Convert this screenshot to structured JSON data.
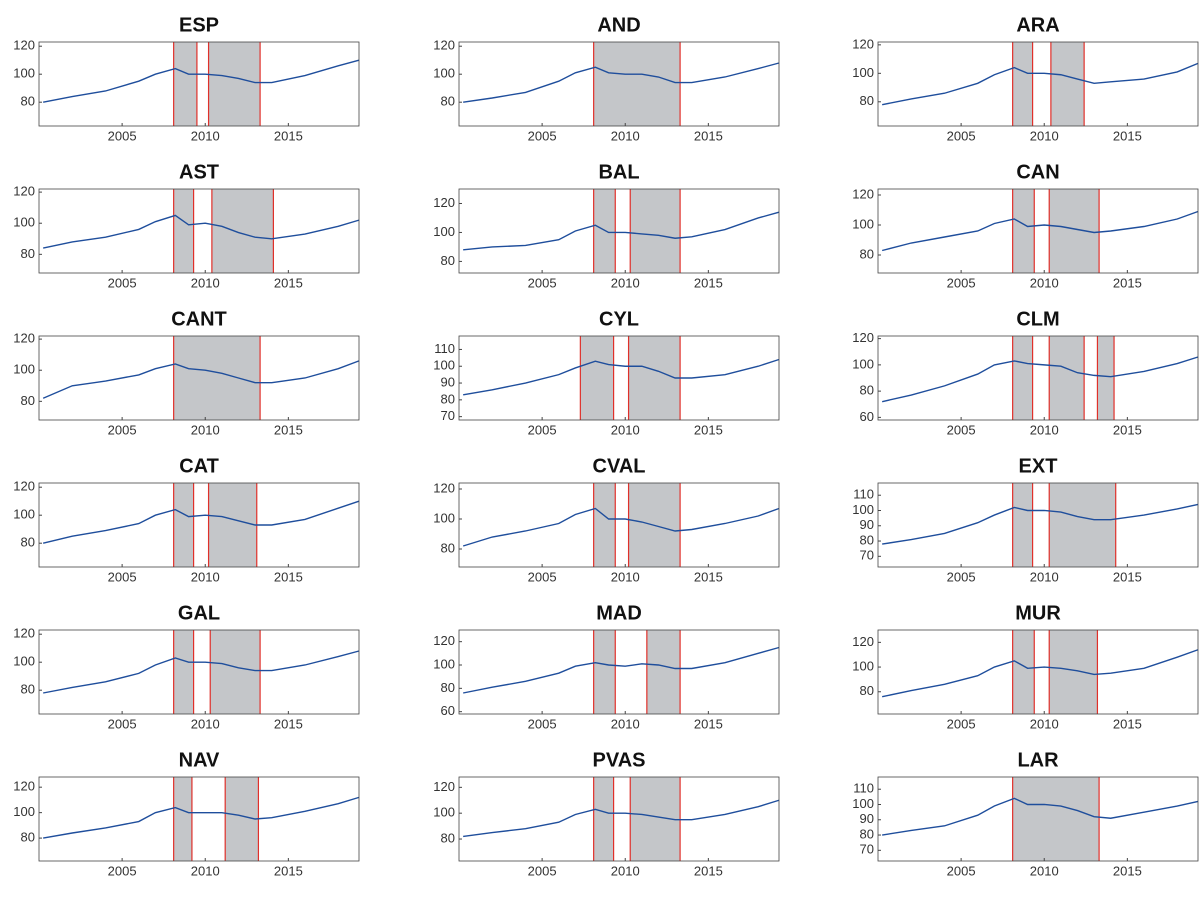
{
  "chart_data": [
    {
      "type": "line",
      "title": "ESP",
      "x": [
        2000.25,
        2002,
        2004,
        2006,
        2007,
        2008.2,
        2009,
        2010,
        2011,
        2012,
        2013,
        2014,
        2016,
        2018,
        2019.25
      ],
      "values": [
        80,
        84,
        88,
        95,
        100,
        104,
        100,
        100,
        99,
        97,
        94,
        94,
        99,
        106,
        110
      ],
      "color": "#1f4e9c",
      "xlim": [
        2000,
        2019.25
      ],
      "xticks": [
        2005,
        2010,
        2015
      ],
      "ylim": [
        63,
        123
      ],
      "yticks": [
        80,
        100,
        120
      ],
      "shaded_periods": [
        [
          2008.1,
          2009.5
        ],
        [
          2010.2,
          2013.3
        ]
      ],
      "shade_color": "#c4c6c9",
      "shade_edge_color": "#e0302a"
    },
    {
      "type": "line",
      "title": "AND",
      "x": [
        2000.25,
        2002,
        2004,
        2006,
        2007,
        2008.2,
        2009,
        2010,
        2011,
        2012,
        2013,
        2014,
        2016,
        2018,
        2019.25
      ],
      "values": [
        80,
        83,
        87,
        95,
        101,
        105,
        101,
        100,
        100,
        98,
        94,
        94,
        98,
        104,
        108
      ],
      "color": "#1f4e9c",
      "xlim": [
        2000,
        2019.25
      ],
      "xticks": [
        2005,
        2010,
        2015
      ],
      "ylim": [
        63,
        123
      ],
      "yticks": [
        80,
        100,
        120
      ],
      "shaded_periods": [
        [
          2008.1,
          2013.3
        ]
      ],
      "shade_color": "#c4c6c9",
      "shade_edge_color": "#e0302a"
    },
    {
      "type": "line",
      "title": "ARA",
      "x": [
        2000.25,
        2002,
        2004,
        2006,
        2007,
        2008.2,
        2009,
        2010,
        2011,
        2012,
        2013,
        2014,
        2016,
        2018,
        2019.25
      ],
      "values": [
        78,
        82,
        86,
        93,
        99,
        104,
        100,
        100,
        99,
        96,
        93,
        94,
        96,
        101,
        107
      ],
      "color": "#1f4e9c",
      "xlim": [
        2000,
        2019.25
      ],
      "xticks": [
        2005,
        2010,
        2015
      ],
      "ylim": [
        63,
        122
      ],
      "yticks": [
        80,
        100,
        120
      ],
      "shaded_periods": [
        [
          2008.1,
          2009.3
        ],
        [
          2010.4,
          2012.4
        ]
      ],
      "shade_color": "#c4c6c9",
      "shade_edge_color": "#e0302a"
    },
    {
      "type": "line",
      "title": "AST",
      "x": [
        2000.25,
        2002,
        2004,
        2006,
        2007,
        2008.2,
        2009,
        2010,
        2011,
        2012,
        2013,
        2014,
        2016,
        2018,
        2019.25
      ],
      "values": [
        84,
        88,
        91,
        96,
        101,
        105,
        99,
        100,
        98,
        94,
        91,
        90,
        93,
        98,
        102
      ],
      "color": "#1f4e9c",
      "xlim": [
        2000,
        2019.25
      ],
      "xticks": [
        2005,
        2010,
        2015
      ],
      "ylim": [
        68,
        122
      ],
      "yticks": [
        80,
        100,
        120
      ],
      "shaded_periods": [
        [
          2008.1,
          2009.3
        ],
        [
          2010.4,
          2014.1
        ]
      ],
      "shade_color": "#c4c6c9",
      "shade_edge_color": "#e0302a"
    },
    {
      "type": "line",
      "title": "BAL",
      "x": [
        2000.25,
        2002,
        2004,
        2006,
        2007,
        2008.2,
        2009,
        2010,
        2011,
        2012,
        2013,
        2014,
        2016,
        2018,
        2019.25
      ],
      "values": [
        88,
        90,
        91,
        95,
        101,
        105,
        100,
        100,
        99,
        98,
        96,
        97,
        102,
        110,
        114
      ],
      "color": "#1f4e9c",
      "xlim": [
        2000,
        2019.25
      ],
      "xticks": [
        2005,
        2010,
        2015
      ],
      "ylim": [
        72,
        130
      ],
      "yticks": [
        80,
        100,
        120
      ],
      "shaded_periods": [
        [
          2008.1,
          2009.4
        ],
        [
          2010.3,
          2013.3
        ]
      ],
      "shade_color": "#c4c6c9",
      "shade_edge_color": "#e0302a"
    },
    {
      "type": "line",
      "title": "CAN",
      "x": [
        2000.25,
        2002,
        2004,
        2006,
        2007,
        2008.2,
        2009,
        2010,
        2011,
        2012,
        2013,
        2014,
        2016,
        2018,
        2019.25
      ],
      "values": [
        83,
        88,
        92,
        96,
        101,
        104,
        99,
        100,
        99,
        97,
        95,
        96,
        99,
        104,
        109
      ],
      "color": "#1f4e9c",
      "xlim": [
        2000,
        2019.25
      ],
      "xticks": [
        2005,
        2010,
        2015
      ],
      "ylim": [
        68,
        124
      ],
      "yticks": [
        80,
        100,
        120
      ],
      "shaded_periods": [
        [
          2008.1,
          2009.4
        ],
        [
          2010.3,
          2013.3
        ]
      ],
      "shade_color": "#c4c6c9",
      "shade_edge_color": "#e0302a"
    },
    {
      "type": "line",
      "title": "CANT",
      "x": [
        2000.25,
        2002,
        2004,
        2006,
        2007,
        2008.2,
        2009,
        2010,
        2011,
        2012,
        2013,
        2014,
        2016,
        2018,
        2019.25
      ],
      "values": [
        82,
        90,
        93,
        97,
        101,
        104,
        101,
        100,
        98,
        95,
        92,
        92,
        95,
        101,
        106
      ],
      "color": "#1f4e9c",
      "xlim": [
        2000,
        2019.25
      ],
      "xticks": [
        2005,
        2010,
        2015
      ],
      "ylim": [
        68,
        122
      ],
      "yticks": [
        80,
        100,
        120
      ],
      "shaded_periods": [
        [
          2008.1,
          2013.3
        ]
      ],
      "shade_color": "#c4c6c9",
      "shade_edge_color": "#e0302a"
    },
    {
      "type": "line",
      "title": "CYL",
      "x": [
        2000.25,
        2002,
        2004,
        2006,
        2007,
        2008.2,
        2009,
        2010,
        2011,
        2012,
        2013,
        2014,
        2016,
        2018,
        2019.25
      ],
      "values": [
        83,
        86,
        90,
        95,
        99,
        103,
        101,
        100,
        100,
        97,
        93,
        93,
        95,
        100,
        104
      ],
      "color": "#1f4e9c",
      "xlim": [
        2000,
        2019.25
      ],
      "xticks": [
        2005,
        2010,
        2015
      ],
      "ylim": [
        68,
        118
      ],
      "yticks": [
        70,
        80,
        90,
        100,
        110
      ],
      "shaded_periods": [
        [
          2007.3,
          2009.3
        ],
        [
          2010.2,
          2013.3
        ]
      ],
      "shade_color": "#c4c6c9",
      "shade_edge_color": "#e0302a"
    },
    {
      "type": "line",
      "title": "CLM",
      "x": [
        2000.25,
        2002,
        2004,
        2006,
        2007,
        2008.2,
        2009,
        2010,
        2011,
        2012,
        2013,
        2014,
        2016,
        2018,
        2019.25
      ],
      "values": [
        72,
        77,
        84,
        93,
        100,
        103,
        101,
        100,
        99,
        94,
        92,
        91,
        95,
        101,
        106
      ],
      "color": "#1f4e9c",
      "xlim": [
        2000,
        2019.25
      ],
      "xticks": [
        2005,
        2010,
        2015
      ],
      "ylim": [
        58,
        122
      ],
      "yticks": [
        60,
        80,
        100,
        120
      ],
      "shaded_periods": [
        [
          2008.1,
          2009.3
        ],
        [
          2010.3,
          2012.4
        ],
        [
          2013.2,
          2014.2
        ]
      ],
      "shade_color": "#c4c6c9",
      "shade_edge_color": "#e0302a"
    },
    {
      "type": "line",
      "title": "CAT",
      "x": [
        2000.25,
        2002,
        2004,
        2006,
        2007,
        2008.2,
        2009,
        2010,
        2011,
        2012,
        2013,
        2014,
        2016,
        2018,
        2019.25
      ],
      "values": [
        80,
        85,
        89,
        94,
        100,
        104,
        99,
        100,
        99,
        96,
        93,
        93,
        97,
        105,
        110
      ],
      "color": "#1f4e9c",
      "xlim": [
        2000,
        2019.25
      ],
      "xticks": [
        2005,
        2010,
        2015
      ],
      "ylim": [
        63,
        123
      ],
      "yticks": [
        80,
        100,
        120
      ],
      "shaded_periods": [
        [
          2008.1,
          2009.3
        ],
        [
          2010.2,
          2013.1
        ]
      ],
      "shade_color": "#c4c6c9",
      "shade_edge_color": "#e0302a"
    },
    {
      "type": "line",
      "title": "CVAL",
      "x": [
        2000.25,
        2002,
        2004,
        2006,
        2007,
        2008.2,
        2009,
        2010,
        2011,
        2012,
        2013,
        2014,
        2016,
        2018,
        2019.25
      ],
      "values": [
        82,
        88,
        92,
        97,
        103,
        107,
        100,
        100,
        98,
        95,
        92,
        93,
        97,
        102,
        107
      ],
      "color": "#1f4e9c",
      "xlim": [
        2000,
        2019.25
      ],
      "xticks": [
        2005,
        2010,
        2015
      ],
      "ylim": [
        68,
        124
      ],
      "yticks": [
        80,
        100,
        120
      ],
      "shaded_periods": [
        [
          2008.1,
          2009.4
        ],
        [
          2010.2,
          2013.3
        ]
      ],
      "shade_color": "#c4c6c9",
      "shade_edge_color": "#e0302a"
    },
    {
      "type": "line",
      "title": "EXT",
      "x": [
        2000.25,
        2002,
        2004,
        2006,
        2007,
        2008.2,
        2009,
        2010,
        2011,
        2012,
        2013,
        2014,
        2016,
        2018,
        2019.25
      ],
      "values": [
        78,
        81,
        85,
        92,
        97,
        102,
        100,
        100,
        99,
        96,
        94,
        94,
        97,
        101,
        104
      ],
      "color": "#1f4e9c",
      "xlim": [
        2000,
        2019.25
      ],
      "xticks": [
        2005,
        2010,
        2015
      ],
      "ylim": [
        63,
        118
      ],
      "yticks": [
        70,
        80,
        90,
        100,
        110
      ],
      "shaded_periods": [
        [
          2008.1,
          2009.3
        ],
        [
          2010.3,
          2014.3
        ]
      ],
      "shade_color": "#c4c6c9",
      "shade_edge_color": "#e0302a"
    },
    {
      "type": "line",
      "title": "GAL",
      "x": [
        2000.25,
        2002,
        2004,
        2006,
        2007,
        2008.2,
        2009,
        2010,
        2011,
        2012,
        2013,
        2014,
        2016,
        2018,
        2019.25
      ],
      "values": [
        78,
        82,
        86,
        92,
        98,
        103,
        100,
        100,
        99,
        96,
        94,
        94,
        98,
        104,
        108
      ],
      "color": "#1f4e9c",
      "xlim": [
        2000,
        2019.25
      ],
      "xticks": [
        2005,
        2010,
        2015
      ],
      "ylim": [
        63,
        123
      ],
      "yticks": [
        80,
        100,
        120
      ],
      "shaded_periods": [
        [
          2008.1,
          2009.3
        ],
        [
          2010.3,
          2013.3
        ]
      ],
      "shade_color": "#c4c6c9",
      "shade_edge_color": "#e0302a"
    },
    {
      "type": "line",
      "title": "MAD",
      "x": [
        2000.25,
        2002,
        2004,
        2006,
        2007,
        2008.2,
        2009,
        2010,
        2011,
        2012,
        2013,
        2014,
        2016,
        2018,
        2019.25
      ],
      "values": [
        76,
        81,
        86,
        93,
        99,
        102,
        100,
        99,
        101,
        100,
        97,
        97,
        102,
        110,
        115
      ],
      "color": "#1f4e9c",
      "xlim": [
        2000,
        2019.25
      ],
      "xticks": [
        2005,
        2010,
        2015
      ],
      "ylim": [
        58,
        130
      ],
      "yticks": [
        60,
        80,
        100,
        120
      ],
      "shaded_periods": [
        [
          2008.1,
          2009.4
        ],
        [
          2011.3,
          2013.3
        ]
      ],
      "shade_color": "#c4c6c9",
      "shade_edge_color": "#e0302a"
    },
    {
      "type": "line",
      "title": "MUR",
      "x": [
        2000.25,
        2002,
        2004,
        2006,
        2007,
        2008.2,
        2009,
        2010,
        2011,
        2012,
        2013,
        2014,
        2016,
        2018,
        2019.25
      ],
      "values": [
        76,
        81,
        86,
        93,
        100,
        105,
        99,
        100,
        99,
        97,
        94,
        95,
        99,
        108,
        114
      ],
      "color": "#1f4e9c",
      "xlim": [
        2000,
        2019.25
      ],
      "xticks": [
        2005,
        2010,
        2015
      ],
      "ylim": [
        62,
        130
      ],
      "yticks": [
        80,
        100,
        120
      ],
      "shaded_periods": [
        [
          2008.1,
          2009.4
        ],
        [
          2010.3,
          2013.2
        ]
      ],
      "shade_color": "#c4c6c9",
      "shade_edge_color": "#e0302a"
    },
    {
      "type": "line",
      "title": "NAV",
      "x": [
        2000.25,
        2002,
        2004,
        2006,
        2007,
        2008.2,
        2009,
        2010,
        2011,
        2012,
        2013,
        2014,
        2016,
        2018,
        2019.25
      ],
      "values": [
        80,
        84,
        88,
        93,
        100,
        104,
        100,
        100,
        100,
        98,
        95,
        96,
        101,
        107,
        112
      ],
      "color": "#1f4e9c",
      "xlim": [
        2000,
        2019.25
      ],
      "xticks": [
        2005,
        2010,
        2015
      ],
      "ylim": [
        62,
        128
      ],
      "yticks": [
        80,
        100,
        120
      ],
      "shaded_periods": [
        [
          2008.1,
          2009.2
        ],
        [
          2011.2,
          2013.2
        ]
      ],
      "shade_color": "#c4c6c9",
      "shade_edge_color": "#e0302a"
    },
    {
      "type": "line",
      "title": "PVAS",
      "x": [
        2000.25,
        2002,
        2004,
        2006,
        2007,
        2008.2,
        2009,
        2010,
        2011,
        2012,
        2013,
        2014,
        2016,
        2018,
        2019.25
      ],
      "values": [
        82,
        85,
        88,
        93,
        99,
        103,
        100,
        100,
        99,
        97,
        95,
        95,
        99,
        105,
        110
      ],
      "color": "#1f4e9c",
      "xlim": [
        2000,
        2019.25
      ],
      "xticks": [
        2005,
        2010,
        2015
      ],
      "ylim": [
        63,
        128
      ],
      "yticks": [
        80,
        100,
        120
      ],
      "shaded_periods": [
        [
          2008.1,
          2009.3
        ],
        [
          2010.3,
          2013.3
        ]
      ],
      "shade_color": "#c4c6c9",
      "shade_edge_color": "#e0302a"
    },
    {
      "type": "line",
      "title": "LAR",
      "x": [
        2000.25,
        2002,
        2004,
        2006,
        2007,
        2008.2,
        2009,
        2010,
        2011,
        2012,
        2013,
        2014,
        2016,
        2018,
        2019.25
      ],
      "values": [
        80,
        83,
        86,
        93,
        99,
        104,
        100,
        100,
        99,
        96,
        92,
        91,
        95,
        99,
        102
      ],
      "color": "#1f4e9c",
      "xlim": [
        2000,
        2019.25
      ],
      "xticks": [
        2005,
        2010,
        2015
      ],
      "ylim": [
        63,
        118
      ],
      "yticks": [
        70,
        80,
        90,
        100,
        110
      ],
      "shaded_periods": [
        [
          2008.1,
          2013.3
        ]
      ],
      "shade_color": "#c4c6c9",
      "shade_edge_color": "#e0302a"
    }
  ]
}
